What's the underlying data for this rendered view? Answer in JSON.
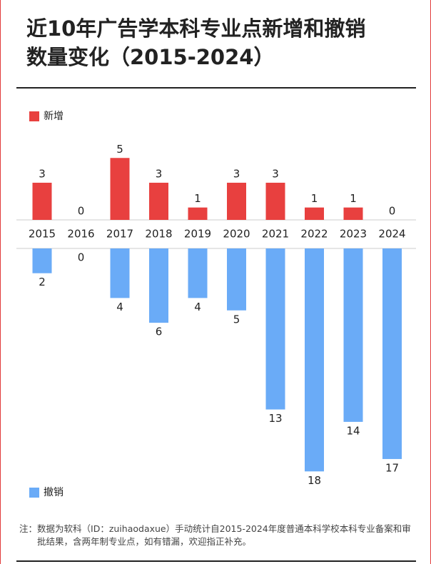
{
  "chart_data": {
    "type": "bar",
    "title": [
      "近10年广告学本科专业点新增和撤销",
      "数量变化（2015-2024）"
    ],
    "categories": [
      "2015",
      "2016",
      "2017",
      "2018",
      "2019",
      "2020",
      "2021",
      "2022",
      "2023",
      "2024"
    ],
    "series": [
      {
        "name": "新增",
        "color": "#e8403f",
        "values": [
          3,
          0,
          5,
          3,
          1,
          3,
          3,
          1,
          1,
          0
        ]
      },
      {
        "name": "撤销",
        "color": "#6aabf7",
        "values": [
          2,
          0,
          4,
          6,
          4,
          5,
          13,
          18,
          14,
          17
        ]
      }
    ],
    "note_label": "注：",
    "note": "数据为软科（ID：zuihaodaxue）手动统计自2015-2024年度普通本科学校本科专业备案和审批结果，含两年制专业点，如有错漏，欢迎指正补充。"
  }
}
